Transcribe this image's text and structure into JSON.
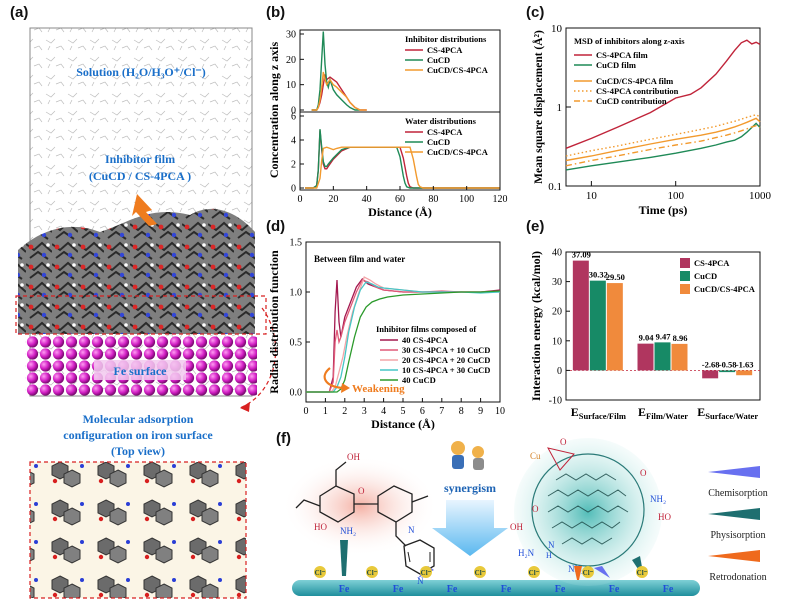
{
  "panels": {
    "a": {
      "label": "(a)",
      "solution_text": "Solution (H₂O/H₃O⁺/Cl⁻)",
      "film_line1": "Inhibitor film",
      "film_line2": "(CuCD / CS-4PCA )",
      "surface_text": "Fe surface",
      "adsorption_line1": "Molecular adsorption",
      "adsorption_line2": "configuration on iron surface",
      "adsorption_line3": "(Top view)"
    },
    "b": {
      "label": "(b)"
    },
    "c": {
      "label": "(c)"
    },
    "d": {
      "label": "(d)"
    },
    "e": {
      "label": "(e)"
    },
    "f": {
      "label": "(f)",
      "synergism": "synergism",
      "legend": [
        "Chemisorption",
        "Physisorption",
        "Retrodonation"
      ],
      "fe": "Fe",
      "cl": "Cl⁻",
      "cu": "Cu",
      "atoms": [
        "OH",
        "HO",
        "NH₂",
        "N",
        "O",
        "O",
        "NH₂",
        "H₂N",
        "NH₂",
        "OH",
        "HO",
        "N",
        "H",
        "O"
      ]
    }
  },
  "chart_data": [
    {
      "panel": "b-top",
      "type": "line",
      "legend_title": "Inhibitor distributions",
      "xlim": [
        0,
        120
      ],
      "ylim": [
        0,
        30
      ],
      "yticks": [
        0,
        10,
        20,
        30
      ],
      "series": [
        {
          "name": "CS-4PCA",
          "color": "#c0243a",
          "x": [
            7,
            10,
            11,
            12,
            13,
            14,
            15,
            16,
            18,
            20,
            22,
            25,
            28,
            30,
            33,
            36,
            40
          ],
          "y": [
            0,
            0,
            1,
            3,
            6,
            10,
            14,
            12,
            13,
            12,
            11,
            8,
            5,
            3,
            1,
            0,
            0
          ]
        },
        {
          "name": "CuCD",
          "color": "#1f8a57",
          "x": [
            7,
            10,
            11,
            12,
            13,
            14,
            15,
            16,
            17,
            18,
            20,
            22,
            25,
            28,
            30,
            33,
            36
          ],
          "y": [
            0,
            0,
            2,
            8,
            20,
            31,
            18,
            11,
            9,
            12,
            8,
            6,
            4,
            2,
            1,
            0,
            0
          ]
        },
        {
          "name": "CuCD/CS-4PCA",
          "color": "#f29a2e",
          "x": [
            7,
            10,
            11,
            12,
            13,
            14,
            15,
            16,
            18,
            20,
            22,
            25,
            28,
            30,
            33,
            36,
            40
          ],
          "y": [
            0,
            0,
            1,
            4,
            9,
            15,
            12,
            10,
            12,
            10,
            9,
            7,
            5,
            3,
            1,
            0,
            0
          ]
        }
      ]
    },
    {
      "panel": "b-bottom",
      "type": "line",
      "legend_title": "Water distributions",
      "xlabel": "Distance (Å)",
      "ylabel": "Concentration along z axis",
      "xlim": [
        0,
        120
      ],
      "ylim": [
        0,
        6
      ],
      "xticks": [
        0,
        20,
        40,
        60,
        80,
        100,
        120
      ],
      "yticks": [
        0,
        2,
        4,
        6
      ],
      "series": [
        {
          "name": "CS-4PCA",
          "color": "#c0243a",
          "x": [
            3,
            8,
            10,
            11,
            12,
            13,
            14,
            15,
            16,
            17,
            20,
            25,
            30,
            35,
            40,
            50,
            60,
            62,
            64,
            65,
            66,
            68,
            70,
            120
          ],
          "y": [
            0,
            0,
            0.2,
            1.5,
            4.8,
            3.2,
            2.0,
            1.6,
            1.6,
            1.8,
            2.4,
            3.1,
            3.4,
            3.4,
            3.4,
            3.4,
            3.4,
            2.5,
            1.0,
            0.4,
            0.1,
            0,
            0,
            0
          ]
        },
        {
          "name": "CuCD",
          "color": "#1f8a57",
          "x": [
            3,
            8,
            10,
            11,
            12,
            13,
            14,
            15,
            16,
            17,
            20,
            25,
            30,
            35,
            40,
            50,
            58,
            60,
            62,
            63,
            64,
            66,
            68,
            120
          ],
          "y": [
            0,
            0,
            0.2,
            1.5,
            4.9,
            3.4,
            2.2,
            1.8,
            1.8,
            2.0,
            2.5,
            3.2,
            3.4,
            3.4,
            3.4,
            3.4,
            3.4,
            2.6,
            1.0,
            0.4,
            0.1,
            0,
            0,
            0
          ]
        },
        {
          "name": "CuCD/CS-4PCA",
          "color": "#f29a2e",
          "x": [
            3,
            8,
            10,
            12,
            13,
            14,
            16,
            18,
            20,
            22,
            25,
            30,
            35,
            40,
            50,
            60,
            66,
            68,
            70,
            71,
            72,
            74,
            120
          ],
          "y": [
            0,
            0,
            0,
            0.8,
            2.3,
            3.3,
            3.4,
            3.3,
            3.2,
            3.3,
            3.4,
            3.4,
            3.4,
            3.4,
            3.4,
            3.4,
            3.4,
            2.4,
            0.9,
            0.3,
            0.1,
            0,
            0
          ]
        }
      ]
    },
    {
      "panel": "c",
      "type": "line",
      "title": "MSD of inhibitors along z-axis",
      "xlabel": "Time (ps)",
      "ylabel": "Mean square displacement (Å²)",
      "xscale": "log",
      "yscale": "log",
      "xlim": [
        5,
        1000
      ],
      "ylim": [
        0.1,
        10
      ],
      "xticks": [
        10,
        100,
        1000
      ],
      "yticks": [
        0.1,
        1,
        10
      ],
      "series": [
        {
          "name": "CS-4PCA film",
          "color": "#c0243a",
          "style": "solid",
          "x": [
            5,
            10,
            20,
            50,
            100,
            150,
            200,
            300,
            400,
            500,
            600,
            700,
            800,
            900,
            1000
          ],
          "y": [
            0.3,
            0.4,
            0.55,
            0.85,
            1.3,
            1.45,
            1.75,
            2.6,
            3.8,
            5.2,
            6.5,
            7.0,
            6.3,
            6.6,
            6.2
          ]
        },
        {
          "name": "CuCD film",
          "color": "#1f8a57",
          "style": "solid",
          "x": [
            5,
            10,
            20,
            50,
            100,
            200,
            300,
            400,
            500,
            600,
            700,
            800,
            900,
            1000
          ],
          "y": [
            0.16,
            0.18,
            0.2,
            0.23,
            0.26,
            0.3,
            0.33,
            0.36,
            0.38,
            0.42,
            0.48,
            0.55,
            0.62,
            0.55
          ]
        },
        {
          "name": "CuCD/CS-4PCA film",
          "color": "#f29a2e",
          "style": "solid",
          "x": [
            5,
            10,
            20,
            50,
            100,
            200,
            300,
            400,
            500,
            600,
            700,
            800,
            900,
            1000
          ],
          "y": [
            0.21,
            0.24,
            0.28,
            0.34,
            0.39,
            0.44,
            0.48,
            0.52,
            0.56,
            0.6,
            0.64,
            0.68,
            0.72,
            0.65
          ]
        },
        {
          "name": "CS-4PCA contribution",
          "color": "#f29a2e",
          "style": "dotted",
          "x": [
            5,
            10,
            20,
            50,
            100,
            200,
            300,
            400,
            500,
            600,
            700,
            800,
            900,
            1000
          ],
          "y": [
            0.24,
            0.28,
            0.32,
            0.39,
            0.45,
            0.52,
            0.57,
            0.62,
            0.66,
            0.7,
            0.74,
            0.77,
            0.8,
            0.75
          ]
        },
        {
          "name": "CuCD contribution",
          "color": "#f29a2e",
          "style": "dashdot",
          "x": [
            5,
            10,
            20,
            50,
            100,
            200,
            300,
            400,
            500,
            600,
            700,
            800,
            900,
            1000
          ],
          "y": [
            0.18,
            0.21,
            0.24,
            0.29,
            0.33,
            0.37,
            0.41,
            0.44,
            0.47,
            0.5,
            0.53,
            0.56,
            0.58,
            0.55
          ]
        }
      ]
    },
    {
      "panel": "d",
      "type": "line",
      "title": "Between  film and water",
      "legend_title": "Inhibitor films composed of",
      "annotation": "Weakening",
      "xlabel": "Distance (Å)",
      "ylabel": "Radial distribution function",
      "xlim": [
        0,
        10
      ],
      "ylim": [
        -0.1,
        1.5
      ],
      "xticks": [
        0,
        1,
        2,
        3,
        4,
        5,
        6,
        7,
        8,
        9,
        10
      ],
      "yticks": [
        0.0,
        0.5,
        1.0,
        1.5
      ],
      "series": [
        {
          "name": "40 CS-4PCA",
          "color": "#a3184f",
          "x": [
            0,
            1.2,
            1.4,
            1.5,
            1.6,
            1.7,
            1.8,
            2.0,
            2.3,
            2.6,
            2.9,
            3.2,
            3.6,
            4.0,
            5,
            6,
            7,
            8,
            9,
            10
          ],
          "y": [
            0,
            0,
            0.15,
            0.8,
            1.12,
            0.7,
            0.55,
            0.75,
            0.9,
            1.05,
            1.13,
            1.08,
            1.05,
            1.02,
            1.0,
            1.0,
            1.0,
            1.0,
            1.0,
            1.02
          ]
        },
        {
          "name": "30 CS-4PCA + 10 CuCD",
          "color": "#e05a78",
          "x": [
            0,
            1.2,
            1.4,
            1.5,
            1.6,
            1.7,
            1.8,
            2.0,
            2.3,
            2.6,
            2.9,
            3.2,
            3.6,
            4.0,
            5,
            6,
            7,
            8,
            9,
            10
          ],
          "y": [
            0,
            0,
            0.1,
            0.5,
            0.62,
            0.5,
            0.55,
            0.7,
            0.85,
            1.0,
            1.12,
            1.1,
            1.05,
            1.02,
            1.0,
            1.0,
            1.01,
            1.0,
            1.0,
            1.01
          ]
        },
        {
          "name": "20 CS-4PCA + 20 CuCD",
          "color": "#f4a5a8",
          "x": [
            0,
            1.3,
            1.5,
            1.7,
            1.9,
            2.1,
            2.4,
            2.7,
            3.0,
            3.3,
            3.6,
            4.0,
            5,
            6,
            7,
            8,
            9,
            10
          ],
          "y": [
            0,
            0,
            0.05,
            0.2,
            0.35,
            0.55,
            0.8,
            0.98,
            1.15,
            1.12,
            1.08,
            1.04,
            1.02,
            1.0,
            1.0,
            1.0,
            1.0,
            1.0
          ]
        },
        {
          "name": "10 CS-4PCA + 30 CuCD",
          "color": "#46c6c6",
          "x": [
            0,
            1.4,
            1.6,
            1.8,
            2.0,
            2.2,
            2.5,
            2.8,
            3.1,
            3.4,
            3.7,
            4.0,
            5,
            6,
            7,
            8,
            9,
            10
          ],
          "y": [
            0,
            0,
            0.05,
            0.15,
            0.35,
            0.6,
            0.85,
            1.02,
            1.1,
            1.08,
            1.05,
            1.04,
            1.02,
            1.0,
            1.0,
            1.0,
            0.99,
            1.0
          ]
        },
        {
          "name": "40 CuCD",
          "color": "#2b9a2b",
          "x": [
            0,
            1.6,
            1.8,
            2.0,
            2.2,
            2.5,
            2.8,
            3.1,
            3.4,
            3.8,
            4.2,
            5,
            6,
            7,
            8,
            9,
            10
          ],
          "y": [
            0,
            0,
            0.03,
            0.12,
            0.3,
            0.55,
            0.75,
            0.85,
            0.9,
            0.93,
            0.95,
            0.97,
            0.98,
            0.99,
            1.0,
            1.0,
            1.01
          ]
        }
      ]
    },
    {
      "panel": "e",
      "type": "bar",
      "ylabel": "Interaction energy (kcal/mol)",
      "ylim": [
        -10,
        40
      ],
      "yticks": [
        -10,
        0,
        10,
        20,
        30,
        40
      ],
      "categories": [
        {
          "main": "E",
          "sub": "Surface/Film"
        },
        {
          "main": "E",
          "sub": "Film/Water"
        },
        {
          "main": "E",
          "sub": "Surface/Water"
        }
      ],
      "series": [
        {
          "name": "CS-4PCA",
          "color": "#b0365f",
          "values": [
            37.09,
            9.04,
            -2.68
          ],
          "labels": [
            "37.09",
            "9.04",
            "-2.68"
          ]
        },
        {
          "name": "CuCD",
          "color": "#178a66",
          "values": [
            30.32,
            9.47,
            -0.58
          ],
          "labels": [
            "30.32",
            "9.47",
            "-0.58"
          ]
        },
        {
          "name": "CuCD/CS-4PCA",
          "color": "#f08a3c",
          "values": [
            29.5,
            8.96,
            -1.63
          ],
          "labels": [
            "29.50",
            "8.96",
            "-1.63"
          ]
        }
      ]
    }
  ]
}
